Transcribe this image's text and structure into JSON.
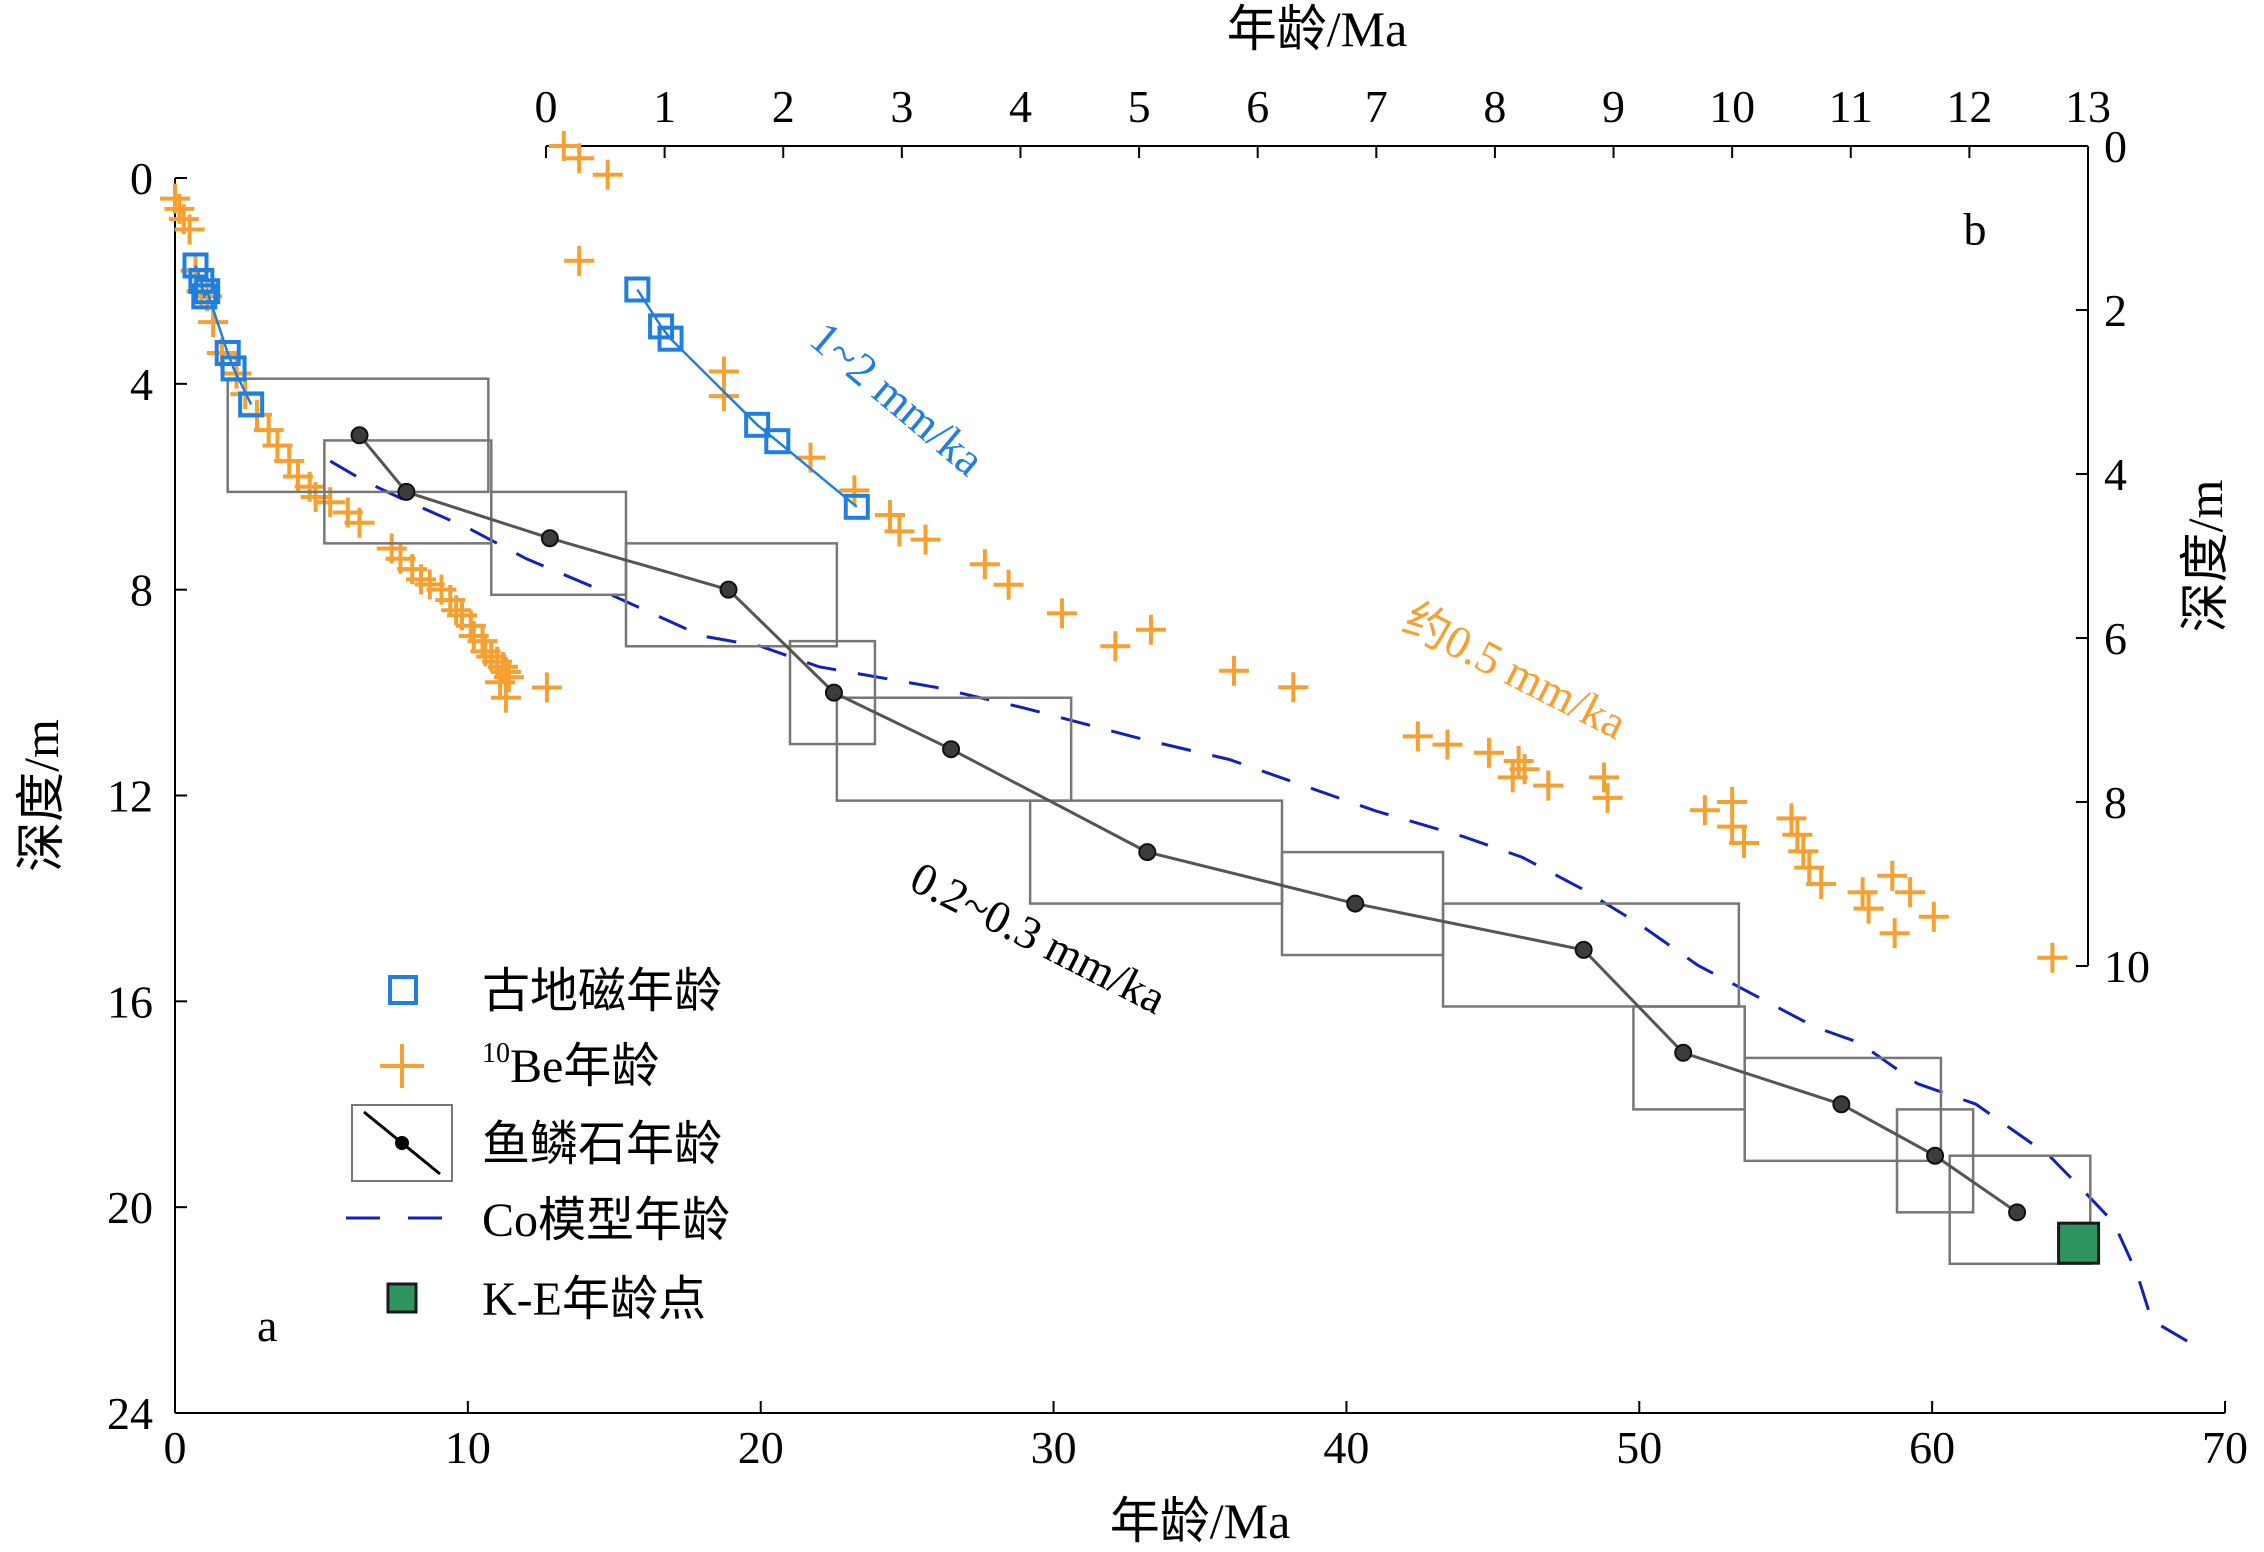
{
  "colors": {
    "paleomag": "#1f7fe0",
    "be10": "#f5a030",
    "ichthyolith": "#555555",
    "ichthyolith_point": "#3c3c3c",
    "box": "#777777",
    "cobalt_model": "#1122bb",
    "ke_point": "#2e9460",
    "ke_point_edge": "#1a1a1a",
    "annotation_blue": "#1f7fe0",
    "annotation_orange": "#f5a030",
    "annotation_black": "#000000"
  },
  "legend": {
    "paleomag": "古地磁年龄",
    "be10_sup": "10",
    "be10_rest": "Be年龄",
    "ichthyolith": "鱼鳞石年龄",
    "cobalt": "Co模型年龄",
    "ke": "K-E年龄点"
  },
  "chart_data": [
    {
      "panel": "a",
      "type": "scatter",
      "xlabel": "年龄/Ma",
      "ylabel": "深度/m",
      "xlim": [
        0,
        70
      ],
      "ylim": [
        24,
        0
      ],
      "xticks": [
        0,
        10,
        20,
        30,
        40,
        50,
        60,
        70
      ],
      "yticks": [
        0,
        4,
        8,
        12,
        16,
        20,
        24
      ],
      "series": [
        {
          "name": "古地磁年龄",
          "marker": "square",
          "points": [
            [
              0.7,
              1.7
            ],
            [
              0.9,
              2.0
            ],
            [
              1.0,
              2.3
            ],
            [
              1.1,
              2.2
            ],
            [
              1.8,
              3.4
            ],
            [
              2.0,
              3.7
            ],
            [
              2.6,
              4.4
            ]
          ]
        },
        {
          "name": "10Be年龄",
          "marker": "plus",
          "points": [
            [
              0.0,
              0.4
            ],
            [
              0.15,
              0.6
            ],
            [
              0.3,
              0.8
            ],
            [
              0.5,
              1.0
            ],
            [
              0.7,
              1.8
            ],
            [
              0.9,
              2.2
            ],
            [
              1.1,
              2.3
            ],
            [
              1.3,
              2.8
            ],
            [
              1.6,
              3.4
            ],
            [
              2.1,
              3.8
            ],
            [
              2.4,
              4.2
            ],
            [
              2.8,
              4.6
            ],
            [
              3.2,
              4.9
            ],
            [
              3.5,
              5.2
            ],
            [
              3.9,
              5.5
            ],
            [
              4.2,
              5.8
            ],
            [
              4.6,
              6.0
            ],
            [
              4.8,
              6.2
            ],
            [
              5.3,
              6.3
            ],
            [
              5.9,
              6.5
            ],
            [
              6.3,
              6.7
            ],
            [
              7.4,
              7.2
            ],
            [
              7.7,
              7.4
            ],
            [
              8.1,
              7.6
            ],
            [
              8.4,
              7.8
            ],
            [
              8.7,
              7.9
            ],
            [
              9.1,
              8.0
            ],
            [
              9.4,
              8.2
            ],
            [
              9.6,
              8.4
            ],
            [
              9.8,
              8.5
            ],
            [
              10.1,
              8.7
            ],
            [
              10.2,
              8.9
            ],
            [
              10.5,
              9.0
            ],
            [
              10.6,
              9.2
            ],
            [
              10.8,
              9.3
            ],
            [
              11.0,
              9.4
            ],
            [
              11.2,
              9.5
            ],
            [
              11.3,
              9.6
            ],
            [
              11.4,
              9.7
            ],
            [
              11.1,
              9.8
            ],
            [
              11.3,
              10.1
            ],
            [
              12.7,
              9.9
            ]
          ]
        },
        {
          "name": "鱼鳞石年龄",
          "marker": "dot-with-box",
          "points": [
            {
              "x": 6.3,
              "y": 5.0,
              "x0": 1.8,
              "x1": 10.7,
              "y0": 3.9,
              "y1": 6.1
            },
            {
              "x": 7.9,
              "y": 6.1,
              "x0": 5.1,
              "x1": 10.8,
              "y0": 5.1,
              "y1": 7.1
            },
            {
              "x": 12.8,
              "y": 7.0,
              "x0": 10.8,
              "x1": 15.4,
              "y0": 6.1,
              "y1": 8.1
            },
            {
              "x": 18.9,
              "y": 8.0,
              "x0": 15.4,
              "x1": 22.6,
              "y0": 7.1,
              "y1": 9.1
            },
            {
              "x": 22.5,
              "y": 10.0,
              "x0": 21.0,
              "x1": 23.9,
              "y0": 9.0,
              "y1": 11.0
            },
            {
              "x": 26.5,
              "y": 11.1,
              "x0": 22.6,
              "x1": 30.6,
              "y0": 10.1,
              "y1": 12.1
            },
            {
              "x": 33.2,
              "y": 13.1,
              "x0": 29.2,
              "x1": 37.8,
              "y0": 12.1,
              "y1": 14.1
            },
            {
              "x": 40.3,
              "y": 14.1,
              "x0": 37.8,
              "x1": 43.3,
              "y0": 13.1,
              "y1": 15.1
            },
            {
              "x": 48.1,
              "y": 15.0,
              "x0": 43.3,
              "x1": 53.4,
              "y0": 14.1,
              "y1": 16.1
            },
            {
              "x": 51.5,
              "y": 17.0,
              "x0": 49.8,
              "x1": 53.6,
              "y0": 16.1,
              "y1": 18.1
            },
            {
              "x": 56.9,
              "y": 18.0,
              "x0": 53.6,
              "x1": 60.3,
              "y0": 17.1,
              "y1": 19.1
            },
            {
              "x": 60.1,
              "y": 19.0,
              "x0": 58.8,
              "x1": 61.4,
              "y0": 18.1,
              "y1": 20.1
            },
            {
              "x": 62.9,
              "y": 20.1,
              "x0": 60.6,
              "x1": 65.4,
              "y0": 19.0,
              "y1": 21.1
            }
          ]
        },
        {
          "name": "Co模型年龄",
          "marker": "dashed-line",
          "points": [
            [
              5.3,
              5.5
            ],
            [
              6.5,
              5.9
            ],
            [
              8,
              6.3
            ],
            [
              10,
              6.8
            ],
            [
              12,
              7.4
            ],
            [
              14.5,
              8.0
            ],
            [
              18,
              8.9
            ],
            [
              20,
              9.1
            ],
            [
              22,
              9.5
            ],
            [
              26,
              9.9
            ],
            [
              29,
              10.3
            ],
            [
              31,
              10.6
            ],
            [
              33,
              10.9
            ],
            [
              36,
              11.3
            ],
            [
              38,
              11.7
            ],
            [
              41,
              12.3
            ],
            [
              44,
              12.8
            ],
            [
              46,
              13.2
            ],
            [
              48,
              13.8
            ],
            [
              50,
              14.5
            ],
            [
              52,
              15.3
            ],
            [
              54,
              15.9
            ],
            [
              56,
              16.5
            ],
            [
              57.5,
              16.8
            ],
            [
              58.5,
              17.2
            ],
            [
              59.5,
              17.6
            ],
            [
              61.5,
              18.0
            ],
            [
              63,
              18.6
            ],
            [
              64,
              19.0
            ],
            [
              65.2,
              19.7
            ],
            [
              66.2,
              20.3
            ],
            [
              67,
              21.3
            ],
            [
              67.5,
              22.2
            ],
            [
              69,
              22.7
            ]
          ]
        },
        {
          "name": "K-E年龄点",
          "marker": "filled-square",
          "points": [
            [
              65.0,
              20.7
            ]
          ]
        }
      ],
      "annotations": [
        {
          "text": "0.2~0.3 mm/ka",
          "color": "black",
          "x": 25.0,
          "y": 13.8,
          "angle": 27
        },
        {
          "text": "a",
          "x": 2.8,
          "y": 22.6
        }
      ]
    },
    {
      "panel": "b",
      "type": "scatter",
      "xlabel": "年龄/Ma",
      "ylabel": "深度/m",
      "xlim": [
        0,
        13
      ],
      "ylim": [
        10,
        0
      ],
      "xticks": [
        0,
        1,
        2,
        3,
        4,
        5,
        6,
        7,
        8,
        9,
        10,
        11,
        12,
        13
      ],
      "yticks": [
        0,
        2,
        4,
        6,
        8,
        10
      ],
      "series": [
        {
          "name": "古地磁年龄",
          "marker": "square",
          "points": [
            [
              0.77,
              1.75
            ],
            [
              0.97,
              2.2
            ],
            [
              1.05,
              2.35
            ],
            [
              1.78,
              3.4
            ],
            [
              1.95,
              3.6
            ],
            [
              2.62,
              4.4
            ]
          ]
        },
        {
          "name": "10Be年龄",
          "marker": "plus",
          "points": [
            [
              0.15,
              0.0
            ],
            [
              0.28,
              0.15
            ],
            [
              0.52,
              0.35
            ],
            [
              0.28,
              1.4
            ],
            [
              1.5,
              2.75
            ],
            [
              1.5,
              3.05
            ],
            [
              2.23,
              3.8
            ],
            [
              2.6,
              4.2
            ],
            [
              2.9,
              4.5
            ],
            [
              2.98,
              4.7
            ],
            [
              3.2,
              4.8
            ],
            [
              3.7,
              5.1
            ],
            [
              3.9,
              5.35
            ],
            [
              4.35,
              5.7
            ],
            [
              4.8,
              6.1
            ],
            [
              5.1,
              5.9
            ],
            [
              5.8,
              6.4
            ],
            [
              6.3,
              6.6
            ],
            [
              7.35,
              7.2
            ],
            [
              7.6,
              7.3
            ],
            [
              7.95,
              7.4
            ],
            [
              8.2,
              7.5
            ],
            [
              8.25,
              7.6
            ],
            [
              8.15,
              7.7
            ],
            [
              8.45,
              7.8
            ],
            [
              8.92,
              7.7
            ],
            [
              8.95,
              7.95
            ],
            [
              9.77,
              8.1
            ],
            [
              10.0,
              8.0
            ],
            [
              10.0,
              8.3
            ],
            [
              10.1,
              8.5
            ],
            [
              10.5,
              8.2
            ],
            [
              10.55,
              8.4
            ],
            [
              10.6,
              8.6
            ],
            [
              10.65,
              8.8
            ],
            [
              10.75,
              9.0
            ],
            [
              11.1,
              9.1
            ],
            [
              11.15,
              9.3
            ],
            [
              11.35,
              8.9
            ],
            [
              11.37,
              9.6
            ],
            [
              11.5,
              9.1
            ],
            [
              11.7,
              9.4
            ],
            [
              12.7,
              9.9
            ]
          ]
        }
      ],
      "annotations": [
        {
          "text": "1~2 mm/ka",
          "color": "blue",
          "x": 2.2,
          "y": 2.4,
          "angle": 40
        },
        {
          "text": "约0.5 mm/ka",
          "color": "orange",
          "x": 7.2,
          "y": 5.9,
          "angle": 27
        },
        {
          "text": "b",
          "x": 11.95,
          "y": 1.2
        }
      ]
    }
  ]
}
